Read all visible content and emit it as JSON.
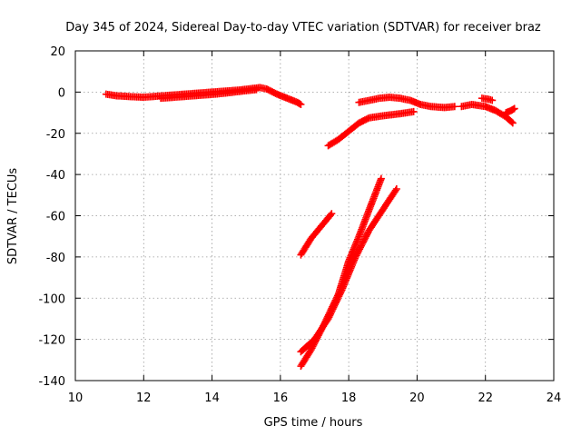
{
  "chart_data": {
    "type": "scatter",
    "title": "Day 345 of 2024, Sidereal Day-to-day VTEC variation (SDTVAR) for receiver braz",
    "xlabel": "GPS time / hours",
    "ylabel": "SDTVAR / TECUs",
    "xlim": [
      10,
      24
    ],
    "ylim": [
      -140,
      20
    ],
    "xticks": [
      "10",
      "12",
      "14",
      "16",
      "18",
      "20",
      "22",
      "24"
    ],
    "yticks": [
      "20",
      "0",
      "-20",
      "-40",
      "-60",
      "-80",
      "-100",
      "-120",
      "-140"
    ],
    "grid": true,
    "marker": "+",
    "color": "#ff0000",
    "series": [
      {
        "points": [
          [
            10.9,
            -1
          ],
          [
            11.2,
            -1.8
          ],
          [
            11.6,
            -2.2
          ],
          [
            12.0,
            -2.5
          ],
          [
            12.4,
            -2
          ],
          [
            12.8,
            -1.5
          ],
          [
            13.2,
            -1
          ],
          [
            13.6,
            -0.5
          ],
          [
            14.0,
            0
          ],
          [
            14.4,
            0.5
          ],
          [
            14.8,
            1
          ],
          [
            15.2,
            1.8
          ],
          [
            15.4,
            2.2
          ],
          [
            15.6,
            1.5
          ],
          [
            15.9,
            -1
          ],
          [
            16.2,
            -3
          ],
          [
            16.5,
            -5
          ],
          [
            16.6,
            -6
          ]
        ]
      },
      {
        "points": [
          [
            12.5,
            -3
          ],
          [
            12.9,
            -2.5
          ],
          [
            13.3,
            -2
          ],
          [
            13.7,
            -1.5
          ],
          [
            14.1,
            -1
          ],
          [
            14.5,
            -0.3
          ],
          [
            14.9,
            0.5
          ],
          [
            15.3,
            1.2
          ]
        ]
      },
      {
        "points": [
          [
            17.4,
            -26
          ],
          [
            17.7,
            -23
          ],
          [
            18.0,
            -19
          ],
          [
            18.3,
            -15
          ],
          [
            18.6,
            -12.5
          ],
          [
            19.0,
            -11.5
          ],
          [
            19.5,
            -10.5
          ],
          [
            19.9,
            -9.5
          ]
        ]
      },
      {
        "points": [
          [
            18.3,
            -5
          ],
          [
            18.6,
            -4
          ],
          [
            18.9,
            -3
          ],
          [
            19.2,
            -2.5
          ],
          [
            19.5,
            -3
          ],
          [
            19.8,
            -4
          ],
          [
            20.1,
            -6
          ],
          [
            20.4,
            -7
          ],
          [
            20.8,
            -7.5
          ],
          [
            21.1,
            -7
          ]
        ]
      },
      {
        "points": [
          [
            21.3,
            -7
          ],
          [
            21.6,
            -6
          ],
          [
            21.8,
            -6.5
          ],
          [
            22.0,
            -7
          ],
          [
            22.3,
            -9
          ],
          [
            22.6,
            -12
          ],
          [
            22.8,
            -15
          ]
        ]
      },
      {
        "points": [
          [
            21.9,
            -3
          ],
          [
            22.1,
            -3.5
          ],
          [
            22.2,
            -4
          ]
        ]
      },
      {
        "points": [
          [
            22.6,
            -10
          ],
          [
            22.75,
            -9
          ],
          [
            22.85,
            -8
          ]
        ]
      },
      {
        "points": [
          [
            16.6,
            -79
          ],
          [
            16.9,
            -71
          ],
          [
            17.2,
            -65
          ],
          [
            17.5,
            -59
          ]
        ]
      },
      {
        "points": [
          [
            16.6,
            -133
          ],
          [
            16.9,
            -125
          ],
          [
            17.3,
            -112
          ],
          [
            17.7,
            -98
          ],
          [
            18.0,
            -82
          ],
          [
            18.3,
            -70
          ],
          [
            18.6,
            -57
          ],
          [
            18.95,
            -42
          ]
        ]
      },
      {
        "points": [
          [
            16.6,
            -126
          ],
          [
            17.0,
            -120
          ],
          [
            17.4,
            -110
          ],
          [
            17.8,
            -96
          ],
          [
            18.2,
            -80
          ],
          [
            18.6,
            -67
          ],
          [
            19.0,
            -57
          ],
          [
            19.4,
            -47
          ]
        ]
      }
    ]
  }
}
